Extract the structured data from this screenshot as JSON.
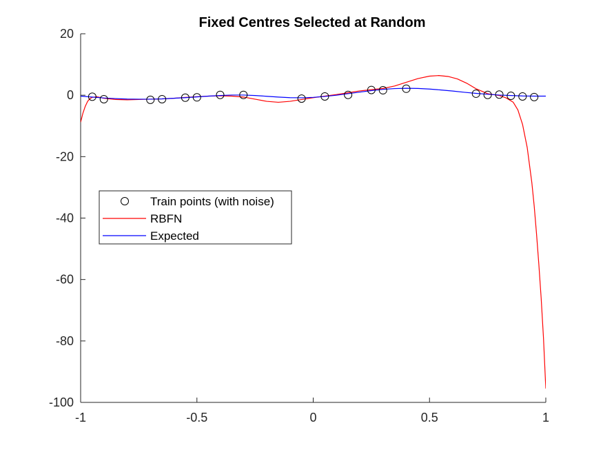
{
  "chart_data": {
    "type": "line",
    "title": "Fixed Centres Selected at Random",
    "xlabel": "",
    "ylabel": "",
    "xlim": [
      -1,
      1
    ],
    "ylim": [
      -100,
      20
    ],
    "xticks": [
      -1,
      -0.5,
      0,
      0.5,
      1
    ],
    "xtick_labels": [
      "-1",
      "-0.5",
      "0",
      "0.5",
      "1"
    ],
    "yticks": [
      -100,
      -80,
      -60,
      -40,
      -20,
      0,
      20
    ],
    "ytick_labels": [
      "-100",
      "-80",
      "-60",
      "-40",
      "-20",
      "0",
      "20"
    ],
    "grid": false,
    "legend_position": "middle-left",
    "legend": [
      {
        "label": "Train points (with noise)",
        "marker": "circle",
        "color": "#000000"
      },
      {
        "label": "RBFN",
        "marker": "line",
        "color": "#ff0000"
      },
      {
        "label": "Expected",
        "marker": "line",
        "color": "#0000ff"
      }
    ],
    "series": [
      {
        "name": "Train points (with noise)",
        "kind": "scatter",
        "color": "#000000",
        "x": [
          -0.95,
          -0.9,
          -0.7,
          -0.65,
          -0.55,
          -0.5,
          -0.4,
          -0.3,
          -0.05,
          0.05,
          0.15,
          0.25,
          0.3,
          0.4,
          0.7,
          0.75,
          0.8,
          0.85,
          0.9,
          0.95
        ],
        "y": [
          -0.5,
          -1.3,
          -1.5,
          -1.3,
          -0.8,
          -0.7,
          0.1,
          0.1,
          -1.1,
          -0.4,
          0.1,
          1.7,
          1.6,
          2.1,
          0.5,
          0.1,
          0.2,
          -0.2,
          -0.4,
          -0.6
        ]
      },
      {
        "name": "RBFN",
        "kind": "line",
        "color": "#ff0000",
        "x": [
          -1,
          -0.99,
          -0.98,
          -0.97,
          -0.96,
          -0.95,
          -0.93,
          -0.9,
          -0.85,
          -0.8,
          -0.75,
          -0.7,
          -0.65,
          -0.6,
          -0.55,
          -0.5,
          -0.45,
          -0.4,
          -0.35,
          -0.3,
          -0.25,
          -0.2,
          -0.15,
          -0.1,
          -0.05,
          0,
          0.05,
          0.1,
          0.15,
          0.2,
          0.25,
          0.3,
          0.35,
          0.4,
          0.45,
          0.5,
          0.54,
          0.58,
          0.62,
          0.66,
          0.7,
          0.75,
          0.8,
          0.83,
          0.86,
          0.88,
          0.9,
          0.92,
          0.94,
          0.95,
          0.96,
          0.97,
          0.98,
          0.99,
          1
        ],
        "y": [
          -8.8,
          -5.8,
          -3.6,
          -2.0,
          -1.1,
          -0.7,
          -0.5,
          -1.0,
          -1.4,
          -1.5,
          -1.4,
          -1.3,
          -1.2,
          -1.0,
          -0.7,
          -0.5,
          -0.3,
          -0.2,
          -0.3,
          -0.6,
          -1.3,
          -2.0,
          -2.3,
          -2.0,
          -1.4,
          -0.8,
          -0.3,
          0.2,
          0.8,
          1.4,
          1.8,
          2.2,
          3.0,
          4.2,
          5.4,
          6.2,
          6.4,
          6.1,
          5.3,
          3.9,
          2.1,
          0.5,
          -0.1,
          -0.9,
          -2.3,
          -4.8,
          -9.5,
          -17.0,
          -28.5,
          -36.0,
          -45.0,
          -55.0,
          -66.0,
          -79.0,
          -95.5
        ]
      },
      {
        "name": "Expected",
        "kind": "line",
        "color": "#0000ff",
        "x": [
          -1,
          -0.95,
          -0.9,
          -0.85,
          -0.8,
          -0.75,
          -0.7,
          -0.65,
          -0.6,
          -0.55,
          -0.5,
          -0.45,
          -0.4,
          -0.35,
          -0.3,
          -0.25,
          -0.2,
          -0.15,
          -0.1,
          -0.05,
          0,
          0.05,
          0.1,
          0.15,
          0.2,
          0.25,
          0.3,
          0.35,
          0.4,
          0.45,
          0.5,
          0.55,
          0.6,
          0.65,
          0.7,
          0.75,
          0.8,
          0.85,
          0.9,
          0.95,
          1
        ],
        "y": [
          -0.3,
          -0.6,
          -0.9,
          -1.1,
          -1.25,
          -1.3,
          -1.3,
          -1.2,
          -1.0,
          -0.8,
          -0.55,
          -0.3,
          -0.1,
          0.05,
          0.05,
          -0.1,
          -0.35,
          -0.6,
          -0.8,
          -0.85,
          -0.7,
          -0.4,
          0.0,
          0.5,
          1.0,
          1.5,
          1.9,
          2.15,
          2.25,
          2.2,
          2.0,
          1.7,
          1.35,
          0.95,
          0.6,
          0.3,
          0.05,
          -0.1,
          -0.25,
          -0.3,
          -0.3
        ]
      }
    ]
  }
}
